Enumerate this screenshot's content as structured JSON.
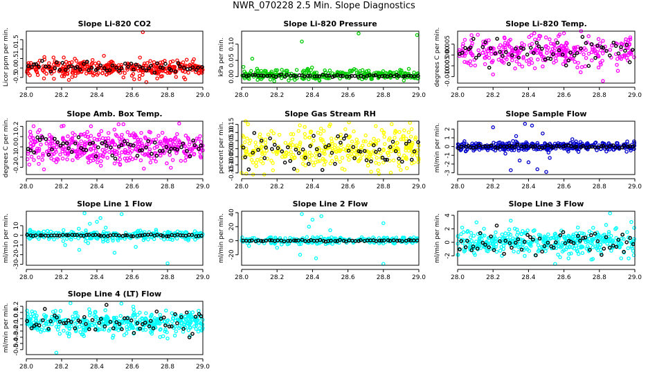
{
  "page_title": "NWR_070228  2.5 Min. Slope Diagnostics",
  "colors": {
    "overlay": "#000000",
    "axis": "#000000"
  },
  "chart_data": [
    {
      "type": "scatter",
      "title": "Slope Li-820 CO2",
      "ylabel": "Licor ppm per min.",
      "color": "#ff0000",
      "xlim": [
        28.0,
        29.0
      ],
      "ylim": [
        -0.8,
        1.95
      ],
      "x_ticks": [
        "28.0",
        "28.2",
        "28.4",
        "28.6",
        "28.8",
        "29.0"
      ],
      "y_ticks": [
        {
          "v": -0.5,
          "label": "-0.5"
        },
        {
          "v": 0.0,
          "label": "0.0"
        },
        {
          "v": 0.5,
          "label": "0.5"
        },
        {
          "v": 1.0,
          "label": "1.0"
        },
        {
          "v": 1.5,
          "label": "1.5"
        }
      ],
      "noise": {
        "center": 0.0,
        "spread": 0.2,
        "n": 380
      },
      "overlay_noise": {
        "center": 0.0,
        "spread": 0.15,
        "n": 60
      },
      "outliers": [
        [
          28.66,
          1.9
        ],
        [
          28.68,
          -0.75
        ],
        [
          28.9,
          -0.6
        ],
        [
          28.1,
          -0.55
        ],
        [
          28.55,
          -0.5
        ]
      ]
    },
    {
      "type": "scatter",
      "title": "Slope Li-820 Pressure",
      "ylabel": "kPa per min.",
      "color": "#00cc00",
      "xlim": [
        28.0,
        29.0
      ],
      "ylim": [
        -0.02,
        0.14
      ],
      "x_ticks": [
        "28.0",
        "28.2",
        "28.4",
        "28.6",
        "28.8",
        "29.0"
      ],
      "y_ticks": [
        {
          "v": 0.0,
          "label": "0.00"
        },
        {
          "v": 0.05,
          "label": "0.05"
        },
        {
          "v": 0.1,
          "label": "0.10"
        }
      ],
      "noise": {
        "center": 0.005,
        "spread": 0.008,
        "n": 300
      },
      "overlay_noise": {
        "center": 0.002,
        "spread": 0.002,
        "n": 60
      },
      "outliers": [
        [
          28.06,
          0.055
        ],
        [
          28.34,
          0.108
        ],
        [
          28.66,
          0.133
        ],
        [
          28.99,
          0.128
        ],
        [
          28.01,
          0.03
        ],
        [
          28.3,
          -0.01
        ]
      ]
    },
    {
      "type": "scatter",
      "title": "Slope Li-820 Temp.",
      "ylabel": "degrees C per min.",
      "color": "#ff00ff",
      "xlim": [
        28.0,
        29.0
      ],
      "ylim": [
        -0.013,
        0.011
      ],
      "x_ticks": [
        "28.0",
        "28.2",
        "28.4",
        "28.6",
        "28.8",
        "29.0"
      ],
      "y_ticks": [
        {
          "v": -0.01,
          "label": "-0.010"
        },
        {
          "v": -0.005,
          "label": "-0.005"
        },
        {
          "v": 0.0,
          "label": "0.000"
        },
        {
          "v": 0.005,
          "label": "0.005"
        }
      ],
      "noise": {
        "center": 0.0015,
        "spread": 0.0035,
        "n": 320
      },
      "overlay_noise": {
        "center": 0.0015,
        "spread": 0.003,
        "n": 60
      },
      "outliers": [
        [
          28.82,
          -0.012
        ],
        [
          28.2,
          -0.009
        ],
        [
          28.6,
          0.01
        ]
      ]
    },
    {
      "type": "scatter",
      "title": "Slope Amb. Box Temp.",
      "ylabel": "degrees C per min.",
      "color": "#ff00ff",
      "xlim": [
        28.0,
        29.0
      ],
      "ylim": [
        -0.27,
        0.25
      ],
      "x_ticks": [
        "28.0",
        "28.2",
        "28.4",
        "28.6",
        "28.8",
        "29.0"
      ],
      "y_ticks": [
        {
          "v": -0.2,
          "label": "-0.2"
        },
        {
          "v": -0.1,
          "label": "-0.1"
        },
        {
          "v": 0.0,
          "label": "0.0"
        },
        {
          "v": 0.1,
          "label": "0.1"
        },
        {
          "v": 0.2,
          "label": "0.2"
        }
      ],
      "noise": {
        "center": 0.0,
        "spread": 0.08,
        "n": 420
      },
      "overlay_noise": {
        "center": 0.0,
        "spread": 0.06,
        "n": 60
      },
      "outliers": [
        [
          28.55,
          0.22
        ],
        [
          28.1,
          -0.22
        ],
        [
          28.2,
          0.2
        ]
      ]
    },
    {
      "type": "scatter",
      "title": "Slope Gas Stream RH",
      "ylabel": "percent per min.",
      "color": "#ffff00",
      "xlim": [
        28.0,
        29.0
      ],
      "ylim": [
        -0.16,
        0.17
      ],
      "x_ticks": [
        "28.0",
        "28.2",
        "28.4",
        "28.6",
        "28.8",
        "29.0"
      ],
      "y_ticks": [
        {
          "v": -0.15,
          "label": "-0.15"
        },
        {
          "v": -0.1,
          "label": "-0.10"
        },
        {
          "v": -0.05,
          "label": "-0.05"
        },
        {
          "v": 0.0,
          "label": "0.00"
        },
        {
          "v": 0.05,
          "label": "0.05"
        },
        {
          "v": 0.1,
          "label": "0.10"
        },
        {
          "v": 0.15,
          "label": "0.15"
        }
      ],
      "noise": {
        "center": 0.0,
        "spread": 0.06,
        "n": 360
      },
      "overlay_noise": {
        "center": 0.0,
        "spread": 0.05,
        "n": 60
      },
      "outliers": [
        [
          28.0,
          -0.15
        ],
        [
          28.95,
          0.16
        ],
        [
          28.5,
          0.15
        ]
      ]
    },
    {
      "type": "scatter",
      "title": "Slope Sample Flow",
      "ylabel": "ml/min per min.",
      "color": "#0000cc",
      "xlim": [
        28.0,
        29.0
      ],
      "ylim": [
        -3.2,
        2.9
      ],
      "x_ticks": [
        "28.0",
        "28.2",
        "28.4",
        "28.6",
        "28.8",
        "29.0"
      ],
      "y_ticks": [
        {
          "v": -3,
          "label": "-3"
        },
        {
          "v": -2,
          "label": "-2"
        },
        {
          "v": -1,
          "label": "-1"
        },
        {
          "v": 0,
          "label": "0"
        },
        {
          "v": 1,
          "label": "1"
        },
        {
          "v": 2,
          "label": "2"
        }
      ],
      "noise": {
        "center": 0.0,
        "spread": 0.25,
        "n": 360
      },
      "overlay_noise": {
        "center": 0.0,
        "spread": 0.1,
        "n": 60
      },
      "outliers": [
        [
          28.2,
          2.2
        ],
        [
          28.3,
          -2.7
        ],
        [
          28.38,
          2.6
        ],
        [
          28.42,
          2.4
        ],
        [
          28.45,
          -2.6
        ],
        [
          28.5,
          -2.9
        ],
        [
          28.35,
          -1.6
        ],
        [
          28.4,
          -1.8
        ],
        [
          28.48,
          1.5
        ],
        [
          28.33,
          1.2
        ],
        [
          28.52,
          -1.3
        ]
      ]
    },
    {
      "type": "scatter",
      "title": "Slope Line 1 Flow",
      "ylabel": "ml/min per min.",
      "color": "#00ffff",
      "xlim": [
        28.0,
        29.0
      ],
      "ylim": [
        -31,
        25
      ],
      "x_ticks": [
        "28.0",
        "28.2",
        "28.4",
        "28.6",
        "28.8",
        "29.0"
      ],
      "y_ticks": [
        {
          "v": -30,
          "label": "-30"
        },
        {
          "v": -20,
          "label": "-20"
        },
        {
          "v": -10,
          "label": "-10"
        },
        {
          "v": 0,
          "label": "0"
        },
        {
          "v": 10,
          "label": "10"
        }
      ],
      "noise": {
        "center": 0.0,
        "spread": 2.5,
        "n": 280
      },
      "overlay_noise": {
        "center": 0.0,
        "spread": 0.5,
        "n": 60
      },
      "outliers": [
        [
          28.33,
          23
        ],
        [
          28.42,
          18
        ],
        [
          28.54,
          22
        ],
        [
          28.36,
          12
        ],
        [
          28.4,
          14
        ],
        [
          28.3,
          -15
        ],
        [
          28.5,
          -18
        ],
        [
          28.8,
          -29
        ],
        [
          28.22,
          -10
        ],
        [
          28.62,
          -12
        ],
        [
          28.35,
          -8
        ],
        [
          28.45,
          8
        ]
      ]
    },
    {
      "type": "scatter",
      "title": "Slope Line 2 Flow",
      "ylabel": "ml/min per min.",
      "color": "#00ffff",
      "xlim": [
        28.0,
        29.0
      ],
      "ylim": [
        -35,
        42
      ],
      "x_ticks": [
        "28.0",
        "28.2",
        "28.4",
        "28.6",
        "28.8",
        "29.0"
      ],
      "y_ticks": [
        {
          "v": -20,
          "label": "-20"
        },
        {
          "v": 0,
          "label": "0"
        },
        {
          "v": 20,
          "label": "20"
        },
        {
          "v": 40,
          "label": "40"
        }
      ],
      "noise": {
        "center": 0.0,
        "spread": 2.5,
        "n": 280
      },
      "overlay_noise": {
        "center": 0.0,
        "spread": 0.6,
        "n": 60
      },
      "outliers": [
        [
          28.34,
          38
        ],
        [
          28.4,
          30
        ],
        [
          28.45,
          35
        ],
        [
          28.38,
          20
        ],
        [
          28.33,
          -20
        ],
        [
          28.42,
          -25
        ],
        [
          28.8,
          -33
        ],
        [
          28.8,
          25
        ],
        [
          28.5,
          15
        ],
        [
          28.2,
          -10
        ]
      ]
    },
    {
      "type": "scatter",
      "title": "Slope Line 3 Flow",
      "ylabel": "ml/min per min.",
      "color": "#00ffff",
      "xlim": [
        28.0,
        29.0
      ],
      "ylim": [
        -3.4,
        4.6
      ],
      "x_ticks": [
        "28.0",
        "28.2",
        "28.4",
        "28.6",
        "28.8",
        "29.0"
      ],
      "y_ticks": [
        {
          "v": -2,
          "label": "-2"
        },
        {
          "v": 0,
          "label": "0"
        },
        {
          "v": 2,
          "label": "2"
        },
        {
          "v": 4,
          "label": "4"
        }
      ],
      "noise": {
        "center": 0.0,
        "spread": 0.9,
        "n": 420
      },
      "overlay_noise": {
        "center": 0.0,
        "spread": 0.9,
        "n": 60
      },
      "outliers": [
        [
          28.86,
          4.3
        ],
        [
          28.55,
          -3.2
        ],
        [
          28.3,
          3.2
        ],
        [
          28.98,
          3.0
        ]
      ]
    },
    {
      "type": "scatter",
      "title": "Slope Line 4 (LT) Flow",
      "ylabel": "ml/min per min.",
      "color": "#00ffff",
      "xlim": [
        28.0,
        29.0
      ],
      "ylim": [
        -0.58,
        0.28
      ],
      "x_ticks": [
        "28.0",
        "28.2",
        "28.4",
        "28.6",
        "28.8",
        "29.0"
      ],
      "y_ticks": [
        {
          "v": -0.5,
          "label": "-0.5"
        },
        {
          "v": -0.4,
          "label": "-0.4"
        },
        {
          "v": -0.3,
          "label": "-0.3"
        },
        {
          "v": -0.2,
          "label": "-0.2"
        },
        {
          "v": -0.1,
          "label": "-0.1"
        },
        {
          "v": 0.0,
          "label": "0.0"
        },
        {
          "v": 0.1,
          "label": "0.1"
        },
        {
          "v": 0.2,
          "label": "0.2"
        }
      ],
      "noise": {
        "center": -0.05,
        "spread": 0.09,
        "n": 420
      },
      "overlay_noise": {
        "center": -0.05,
        "spread": 0.08,
        "n": 60
      },
      "outliers": [
        [
          28.17,
          -0.55
        ],
        [
          28.25,
          0.25
        ],
        [
          28.8,
          -0.32
        ]
      ]
    }
  ]
}
